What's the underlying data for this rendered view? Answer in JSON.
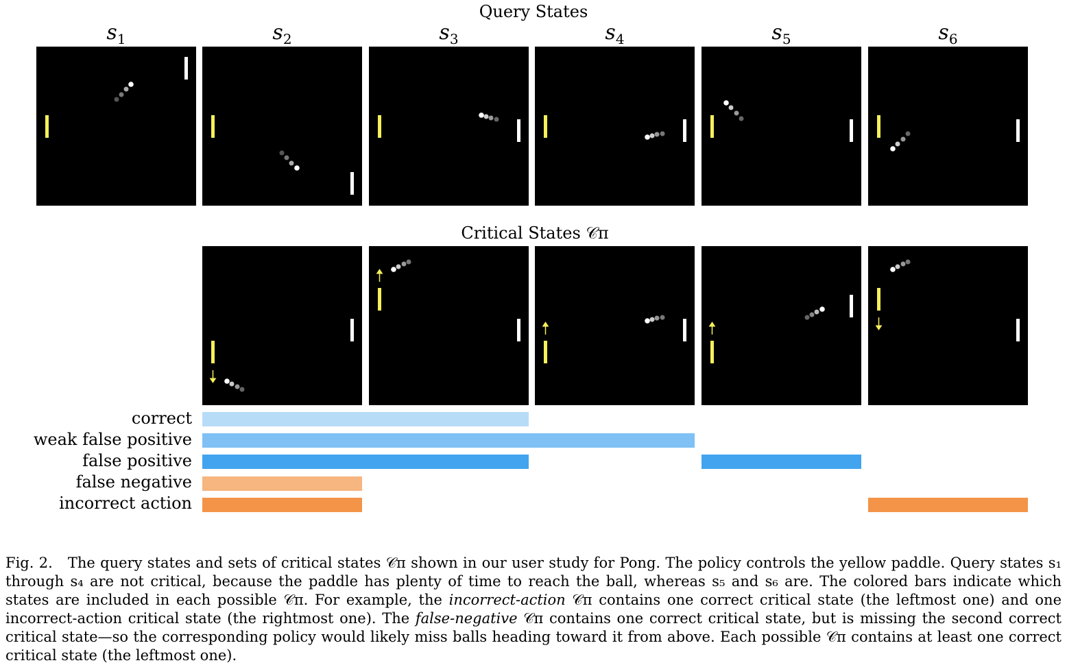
{
  "query_title": "Query States",
  "critical_title": "Critical States 𝒞π",
  "query_states": [
    {
      "label": "s",
      "sub": "1"
    },
    {
      "label": "s",
      "sub": "2"
    },
    {
      "label": "s",
      "sub": "3"
    },
    {
      "label": "s",
      "sub": "4"
    },
    {
      "label": "s",
      "sub": "5"
    },
    {
      "label": "s",
      "sub": "6"
    }
  ],
  "row_labels": [
    "correct",
    "weak false positive",
    "false positive",
    "false negative",
    "incorrect action"
  ],
  "colors": {
    "background": "#000000",
    "policy_paddle": "#f5f05a",
    "opponent_paddle": "#ffffff",
    "correct": "#b7dcf8",
    "weak_false_positive": "#7fc0f5",
    "false_positive": "#42a4ef",
    "false_negative": "#f7b580",
    "incorrect_action": "#f39448"
  },
  "membership": {
    "correct": [
      2,
      3
    ],
    "weak_false_positive": [
      2,
      3,
      4
    ],
    "false_positive": [
      2,
      3,
      5
    ],
    "false_negative": [
      2
    ],
    "incorrect_action": [
      2,
      6
    ]
  },
  "caption": {
    "fig": "Fig. 2.",
    "p1": "The query states and sets of critical states 𝒞π shown in our user study for Pong. The policy controls the yellow paddle. Query states s₁ through s₄ are not critical, because the paddle has plenty of time to reach the ball, whereas s₅ and s₆ are. The colored bars indicate which states are included in each possible 𝒞π. For example, the ",
    "em1": "incorrect-action",
    "p2": " 𝒞π contains one correct critical state (the leftmost one) and one incorrect-action critical state (the rightmost one). The ",
    "em2": "false-negative",
    "p3": " 𝒞π contains one correct critical state, but is missing the second correct critical state—so the corresponding policy would likely miss balls heading toward it from above. Each possible 𝒞π contains at least one correct critical state (the leftmost one)."
  }
}
